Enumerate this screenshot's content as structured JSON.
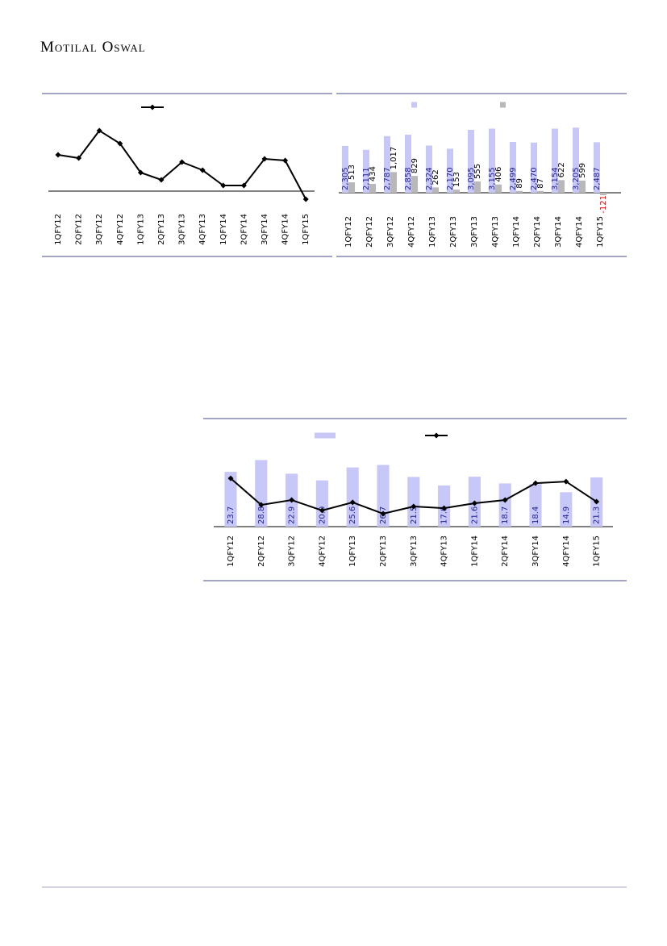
{
  "header": {
    "brand": "Motilal Oswal"
  },
  "chart_data": [
    {
      "type": "line",
      "categories": [
        "1QFY12",
        "2QFY12",
        "3QFY12",
        "4QFY12",
        "1QFY13",
        "2QFY13",
        "3QFY13",
        "4QFY13",
        "1QFY14",
        "2QFY14",
        "3QFY14",
        "4QFY14",
        "1QFY15"
      ],
      "series": [
        {
          "type": "line",
          "color": "#000000",
          "values": [
            45,
            41,
            75,
            59,
            23,
            14,
            36,
            26,
            7,
            7,
            40,
            38,
            -10
          ]
        }
      ],
      "ylim": [
        -20,
        80
      ]
    },
    {
      "type": "bar",
      "categories": [
        "1QFY12",
        "2QFY12",
        "3QFY12",
        "4QFY12",
        "1QFY13",
        "2QFY13",
        "3QFY13",
        "4QFY13",
        "1QFY14",
        "2QFY14",
        "3QFY14",
        "4QFY14",
        "1QFY15"
      ],
      "series": [
        {
          "type": "bar",
          "color": "#c8c8f8",
          "label_color": "#1f1f8f",
          "values": [
            2305,
            2111,
            2787,
            2858,
            2324,
            2170,
            3095,
            3155,
            2499,
            2470,
            3154,
            3205,
            2487
          ],
          "value_labels": [
            "2,305",
            "2,111",
            "2,787",
            "2,858",
            "2,324",
            "2,170",
            "3,095",
            "3,155",
            "2,499",
            "2,470",
            "3,154",
            "3,205",
            "2,487"
          ]
        },
        {
          "type": "bar",
          "color": "#b8b8b8",
          "label_color": "#000000",
          "negative_label_color": "#ff0000",
          "values": [
            513,
            434,
            1017,
            829,
            262,
            153,
            555,
            406,
            89,
            87,
            622,
            599,
            -121
          ],
          "value_labels": [
            "513",
            "434",
            "1,017",
            "829",
            "262",
            "153",
            "555",
            "406",
            "89",
            "87",
            "622",
            "599",
            "-121"
          ]
        }
      ],
      "ylim": [
        -500,
        3500
      ]
    },
    {
      "type": "combo",
      "categories": [
        "1QFY12",
        "2QFY12",
        "3QFY12",
        "4QFY12",
        "1QFY13",
        "2QFY13",
        "3QFY13",
        "4QFY13",
        "1QFY14",
        "2QFY14",
        "3QFY14",
        "4QFY14",
        "1QFY15"
      ],
      "series": [
        {
          "type": "bar",
          "color": "#c8c8f8",
          "label_color": "#1f1f8f",
          "values": [
            23.7,
            28.8,
            22.9,
            20.0,
            25.6,
            26.7,
            21.5,
            17.8,
            21.6,
            18.7,
            18.4,
            14.9,
            21.3
          ],
          "value_labels": [
            "23.7",
            "28.8",
            "22.9",
            "20.0",
            "25.6",
            "26.7",
            "21.5",
            "17.8",
            "21.6",
            "18.7",
            "18.4",
            "14.9",
            "21.3"
          ]
        },
        {
          "type": "line",
          "color": "#000000",
          "values": [
            20.9,
            9.4,
            11.5,
            7.0,
            10.5,
            5.6,
            8.7,
            8.0,
            10.1,
            11.5,
            18.8,
            19.5,
            10.8
          ]
        }
      ],
      "ylim": [
        0,
        30
      ]
    }
  ]
}
